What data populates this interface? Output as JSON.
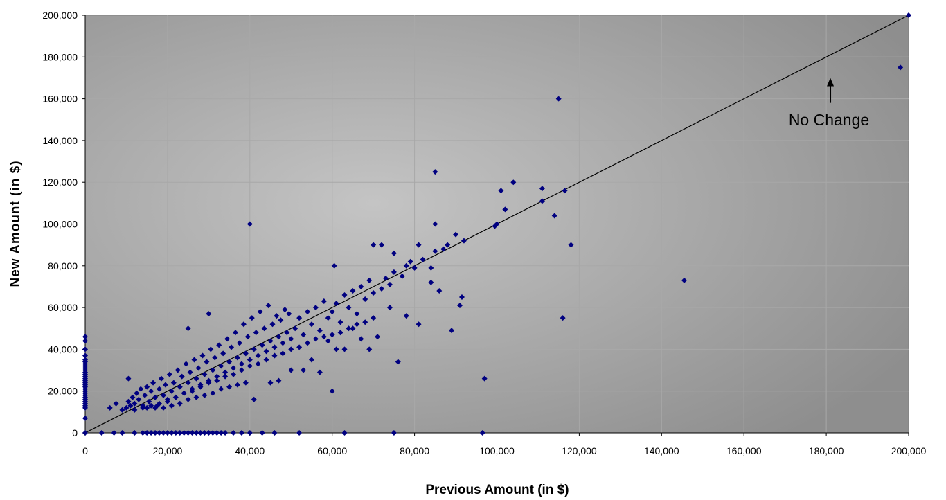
{
  "chart_data": {
    "type": "scatter",
    "title": "",
    "xlabel": "Previous Amount (in $)",
    "ylabel": "New Amount (in $)",
    "xlim": [
      0,
      200000
    ],
    "ylim": [
      0,
      200000
    ],
    "x_ticks": [
      "0",
      "20,000",
      "40,000",
      "60,000",
      "80,000",
      "100,000",
      "120,000",
      "140,000",
      "160,000",
      "180,000",
      "200,000"
    ],
    "y_ticks": [
      "0",
      "20,000",
      "40,000",
      "60,000",
      "80,000",
      "100,000",
      "120,000",
      "140,000",
      "160,000",
      "180,000",
      "200,000"
    ],
    "grid": true,
    "marker_color": "#000080",
    "background_center": "#c4c4c4",
    "background_edge": "#8e8e8e",
    "annotation": {
      "text": "No Change",
      "arrow_x": 181000,
      "arrow_y_from": 158000,
      "arrow_y_to": 168000
    },
    "reference_line": {
      "from": [
        0,
        0
      ],
      "to": [
        200000,
        200000
      ]
    },
    "points": [
      [
        0,
        0
      ],
      [
        0,
        7000
      ],
      [
        0,
        12000
      ],
      [
        0,
        13000
      ],
      [
        0,
        14000
      ],
      [
        0,
        15000
      ],
      [
        0,
        16000
      ],
      [
        0,
        17000
      ],
      [
        0,
        18000
      ],
      [
        0,
        19000
      ],
      [
        0,
        20000
      ],
      [
        0,
        21000
      ],
      [
        0,
        22000
      ],
      [
        0,
        23000
      ],
      [
        0,
        24000
      ],
      [
        0,
        25000
      ],
      [
        0,
        26000
      ],
      [
        0,
        27000
      ],
      [
        0,
        28000
      ],
      [
        0,
        29000
      ],
      [
        0,
        30000
      ],
      [
        0,
        31000
      ],
      [
        0,
        32000
      ],
      [
        0,
        33000
      ],
      [
        0,
        34000
      ],
      [
        0,
        35000
      ],
      [
        0,
        37000
      ],
      [
        0,
        40000
      ],
      [
        0,
        44000
      ],
      [
        0,
        46000
      ],
      [
        4000,
        0
      ],
      [
        7000,
        0
      ],
      [
        9000,
        0
      ],
      [
        12000,
        0
      ],
      [
        14000,
        0
      ],
      [
        15000,
        0
      ],
      [
        16000,
        0
      ],
      [
        17000,
        0
      ],
      [
        18000,
        0
      ],
      [
        19000,
        0
      ],
      [
        20000,
        0
      ],
      [
        21000,
        0
      ],
      [
        22000,
        0
      ],
      [
        23000,
        0
      ],
      [
        24000,
        0
      ],
      [
        25000,
        0
      ],
      [
        26000,
        0
      ],
      [
        27000,
        0
      ],
      [
        28000,
        0
      ],
      [
        29000,
        0
      ],
      [
        30000,
        0
      ],
      [
        31000,
        0
      ],
      [
        32000,
        0
      ],
      [
        33000,
        0
      ],
      [
        34000,
        0
      ],
      [
        36000,
        0
      ],
      [
        38000,
        0
      ],
      [
        40000,
        0
      ],
      [
        43000,
        0
      ],
      [
        46000,
        0
      ],
      [
        52000,
        0
      ],
      [
        63000,
        0
      ],
      [
        75000,
        0
      ],
      [
        96500,
        0
      ],
      [
        6000,
        12000
      ],
      [
        7500,
        14000
      ],
      [
        9000,
        11000
      ],
      [
        10000,
        12000
      ],
      [
        10500,
        15000
      ],
      [
        11000,
        13000
      ],
      [
        11500,
        17000
      ],
      [
        10500,
        26000
      ],
      [
        12000,
        14000
      ],
      [
        12500,
        19000
      ],
      [
        13000,
        16000
      ],
      [
        13500,
        21000
      ],
      [
        14000,
        13000
      ],
      [
        14500,
        18000
      ],
      [
        15000,
        22000
      ],
      [
        15500,
        15000
      ],
      [
        16000,
        20000
      ],
      [
        16500,
        24000
      ],
      [
        17000,
        17000
      ],
      [
        17500,
        13000
      ],
      [
        18000,
        21000
      ],
      [
        18500,
        26000
      ],
      [
        19000,
        18000
      ],
      [
        19500,
        23000
      ],
      [
        20000,
        15000
      ],
      [
        20500,
        28000
      ],
      [
        21000,
        20000
      ],
      [
        21500,
        24000
      ],
      [
        22000,
        17000
      ],
      [
        22500,
        30000
      ],
      [
        23000,
        22000
      ],
      [
        23500,
        27000
      ],
      [
        24000,
        19000
      ],
      [
        24500,
        33000
      ],
      [
        25000,
        24000
      ],
      [
        25000,
        50000
      ],
      [
        25500,
        29000
      ],
      [
        26000,
        21000
      ],
      [
        26500,
        35000
      ],
      [
        27000,
        26000
      ],
      [
        27500,
        31000
      ],
      [
        28000,
        23000
      ],
      [
        28500,
        37000
      ],
      [
        29000,
        28000
      ],
      [
        29500,
        34000
      ],
      [
        30000,
        25000
      ],
      [
        30500,
        40000
      ],
      [
        30000,
        57000
      ],
      [
        31000,
        30000
      ],
      [
        31500,
        36000
      ],
      [
        32000,
        27000
      ],
      [
        32500,
        42000
      ],
      [
        33000,
        32000
      ],
      [
        33500,
        38000
      ],
      [
        34000,
        29000
      ],
      [
        34500,
        45000
      ],
      [
        35000,
        34000
      ],
      [
        35500,
        41000
      ],
      [
        36000,
        31000
      ],
      [
        36500,
        48000
      ],
      [
        37000,
        36000
      ],
      [
        37500,
        43000
      ],
      [
        38000,
        33000
      ],
      [
        38500,
        52000
      ],
      [
        39000,
        38000
      ],
      [
        39500,
        46000
      ],
      [
        40000,
        35000
      ],
      [
        40500,
        55000
      ],
      [
        41000,
        40000
      ],
      [
        41500,
        48000
      ],
      [
        42000,
        37000
      ],
      [
        42500,
        58000
      ],
      [
        43000,
        42000
      ],
      [
        43500,
        50000
      ],
      [
        44000,
        39000
      ],
      [
        44500,
        61000
      ],
      [
        45000,
        44000
      ],
      [
        45500,
        52000
      ],
      [
        46000,
        41000
      ],
      [
        46500,
        56000
      ],
      [
        47000,
        46000
      ],
      [
        47500,
        54000
      ],
      [
        48000,
        43000
      ],
      [
        48500,
        59000
      ],
      [
        49000,
        48000
      ],
      [
        49500,
        57000
      ],
      [
        50000,
        45000
      ],
      [
        51000,
        50000
      ],
      [
        52000,
        55000
      ],
      [
        53000,
        47000
      ],
      [
        54000,
        58000
      ],
      [
        55000,
        52000
      ],
      [
        56000,
        60000
      ],
      [
        57000,
        49000
      ],
      [
        58000,
        63000
      ],
      [
        59000,
        55000
      ],
      [
        60000,
        58000
      ],
      [
        60500,
        80000
      ],
      [
        61000,
        62000
      ],
      [
        62000,
        53000
      ],
      [
        63000,
        66000
      ],
      [
        64000,
        60000
      ],
      [
        65000,
        68000
      ],
      [
        66000,
        57000
      ],
      [
        67000,
        70000
      ],
      [
        68000,
        64000
      ],
      [
        69000,
        73000
      ],
      [
        70000,
        67000
      ],
      [
        70000,
        90000
      ],
      [
        72000,
        90000
      ],
      [
        72000,
        69000
      ],
      [
        73000,
        74000
      ],
      [
        74000,
        71000
      ],
      [
        75000,
        77000
      ],
      [
        75000,
        86000
      ],
      [
        77000,
        75000
      ],
      [
        78000,
        80000
      ],
      [
        79000,
        82000
      ],
      [
        80000,
        79000
      ],
      [
        81000,
        90000
      ],
      [
        82000,
        83000
      ],
      [
        84000,
        79000
      ],
      [
        85000,
        87000
      ],
      [
        85000,
        100000
      ],
      [
        85000,
        125000
      ],
      [
        87000,
        88000
      ],
      [
        88000,
        90000
      ],
      [
        90000,
        95000
      ],
      [
        92000,
        92000
      ],
      [
        12000,
        11000
      ],
      [
        14000,
        12000
      ],
      [
        16000,
        13000
      ],
      [
        18000,
        14000
      ],
      [
        20000,
        16000
      ],
      [
        22000,
        17000
      ],
      [
        24000,
        19000
      ],
      [
        26000,
        20000
      ],
      [
        28000,
        22000
      ],
      [
        30000,
        24000
      ],
      [
        32000,
        25000
      ],
      [
        34000,
        27000
      ],
      [
        36000,
        28000
      ],
      [
        38000,
        30000
      ],
      [
        40000,
        32000
      ],
      [
        42000,
        33000
      ],
      [
        44000,
        35000
      ],
      [
        46000,
        37000
      ],
      [
        48000,
        38000
      ],
      [
        50000,
        40000
      ],
      [
        52000,
        41000
      ],
      [
        54000,
        43000
      ],
      [
        56000,
        45000
      ],
      [
        58000,
        46000
      ],
      [
        60000,
        47000
      ],
      [
        62000,
        48000
      ],
      [
        64000,
        50000
      ],
      [
        66000,
        52000
      ],
      [
        68000,
        53000
      ],
      [
        70000,
        55000
      ],
      [
        15000,
        12000
      ],
      [
        17000,
        12000
      ],
      [
        19000,
        12000
      ],
      [
        21000,
        13000
      ],
      [
        23000,
        14000
      ],
      [
        25000,
        16000
      ],
      [
        27000,
        17000
      ],
      [
        29000,
        18000
      ],
      [
        31000,
        19000
      ],
      [
        33000,
        21000
      ],
      [
        35000,
        22000
      ],
      [
        37000,
        23000
      ],
      [
        39000,
        24000
      ],
      [
        41000,
        16000
      ],
      [
        45000,
        24000
      ],
      [
        47000,
        25000
      ],
      [
        50000,
        30000
      ],
      [
        53000,
        30000
      ],
      [
        55000,
        35000
      ],
      [
        57000,
        29000
      ],
      [
        59000,
        44000
      ],
      [
        60000,
        20000
      ],
      [
        61000,
        40000
      ],
      [
        63000,
        40000
      ],
      [
        65000,
        50000
      ],
      [
        67000,
        45000
      ],
      [
        69000,
        40000
      ],
      [
        71000,
        46000
      ],
      [
        74000,
        60000
      ],
      [
        76000,
        34000
      ],
      [
        78000,
        56000
      ],
      [
        81000,
        52000
      ],
      [
        84000,
        72000
      ],
      [
        86000,
        68000
      ],
      [
        89000,
        49000
      ],
      [
        91000,
        61000
      ],
      [
        91500,
        65000
      ],
      [
        40000,
        100000
      ],
      [
        97000,
        26000
      ],
      [
        99500,
        99000
      ],
      [
        100000,
        100000
      ],
      [
        101000,
        116000
      ],
      [
        102000,
        107000
      ],
      [
        104000,
        120000
      ],
      [
        111000,
        111000
      ],
      [
        111000,
        117000
      ],
      [
        114000,
        104000
      ],
      [
        115000,
        160000
      ],
      [
        116000,
        55000
      ],
      [
        116500,
        116000
      ],
      [
        118000,
        90000
      ],
      [
        145500,
        73000
      ],
      [
        198000,
        175000
      ],
      [
        200000,
        200000
      ]
    ]
  }
}
